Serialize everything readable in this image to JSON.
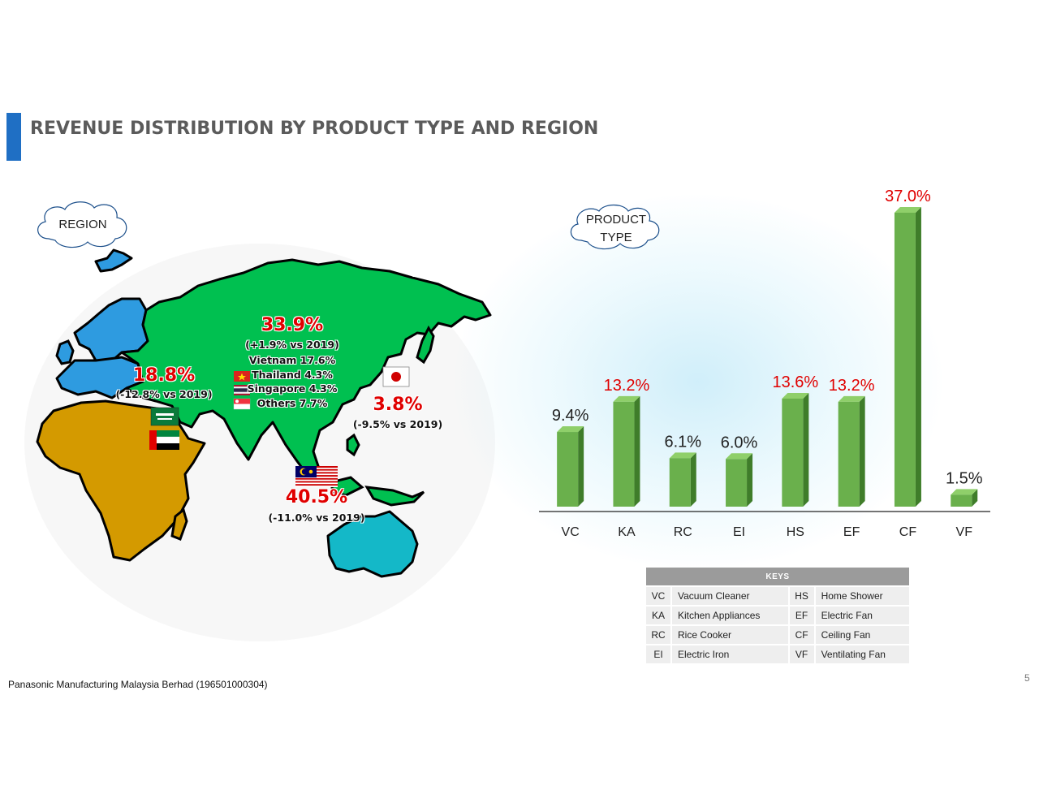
{
  "title": "REVENUE DISTRIBUTION BY PRODUCT TYPE AND REGION",
  "region_cloud": "REGION",
  "product_cloud": [
    "PRODUCT",
    "TYPE"
  ],
  "regions": {
    "asia": {
      "pct": "33.9%",
      "change": "(+1.9% vs 2019)",
      "breakdown": [
        "Vietnam 17.6%",
        "Thailand 4.3%",
        "Singapore 4.3%",
        "Others 7.7%"
      ]
    },
    "europe_me": {
      "pct": "18.8%",
      "change": "(-12.8% vs 2019)"
    },
    "japan": {
      "pct": "3.8%",
      "change": "(-9.5% vs 2019)"
    },
    "malaysia": {
      "pct": "40.5%",
      "change": "(-11.0% vs 2019)"
    }
  },
  "colors": {
    "asia": "#00c050",
    "europe": "#2e9be0",
    "africa": "#d49a00",
    "australia": "#14b8c8",
    "bar": "#6ab04c",
    "bar_side": "#3f7d2a",
    "bar_top": "#8fcf6a",
    "accent_red": "#e00000"
  },
  "chart_data": {
    "type": "bar",
    "categories": [
      "VC",
      "KA",
      "RC",
      "EI",
      "HS",
      "EF",
      "CF",
      "VF"
    ],
    "values": [
      9.4,
      13.2,
      6.1,
      6.0,
      13.6,
      13.2,
      37.0,
      1.5
    ],
    "data_labels": [
      "9.4%",
      "13.2%",
      "6.1%",
      "6.0%",
      "13.6%",
      "13.2%",
      "37.0%",
      "1.5%"
    ],
    "label_colors": [
      "#222222",
      "#e00000",
      "#222222",
      "#222222",
      "#e00000",
      "#e00000",
      "#e00000",
      "#222222"
    ],
    "ylim": [
      0,
      37
    ],
    "xlabel": "",
    "ylabel": ""
  },
  "keys": {
    "header": "KEYS",
    "rows": [
      [
        "VC",
        "Vacuum Cleaner",
        "HS",
        "Home Shower"
      ],
      [
        "KA",
        "Kitchen Appliances",
        "EF",
        "Electric Fan"
      ],
      [
        "RC",
        "Rice Cooker",
        "CF",
        "Ceiling Fan"
      ],
      [
        "EI",
        "Electric Iron",
        "VF",
        "Ventilating Fan"
      ]
    ]
  },
  "footer": "Panasonic Manufacturing Malaysia Berhad (196501000304)",
  "page_number": "5"
}
